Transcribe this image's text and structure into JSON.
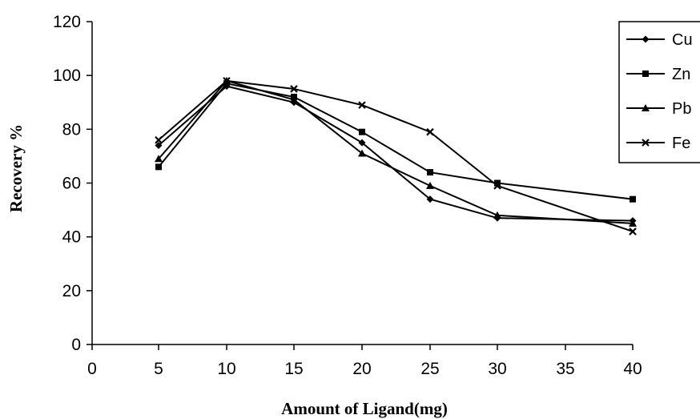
{
  "chart_data": {
    "type": "line",
    "xlabel": "Amount of Ligand(mg)",
    "ylabel": "Recovery %",
    "x_tick_labels": [
      "0",
      "5",
      "10",
      "15",
      "20",
      "25",
      "30",
      "35",
      "40"
    ],
    "y_tick_labels": [
      "0",
      "20",
      "40",
      "60",
      "80",
      "100",
      "120"
    ],
    "ylim": [
      0,
      120
    ],
    "grid": false,
    "legend_position": "right",
    "x": [
      5,
      10,
      15,
      20,
      25,
      30,
      40
    ],
    "series": [
      {
        "name": "Cu",
        "marker": "diamond",
        "values": [
          74,
          96,
          90,
          75,
          54,
          47,
          46
        ]
      },
      {
        "name": "Zn",
        "marker": "square",
        "values": [
          66,
          97,
          92,
          79,
          64,
          60,
          54
        ]
      },
      {
        "name": "Pb",
        "marker": "triangle",
        "values": [
          69,
          98,
          91,
          71,
          59,
          48,
          45
        ]
      },
      {
        "name": "Fe",
        "marker": "x",
        "values": [
          76,
          98,
          95,
          89,
          79,
          59,
          42
        ]
      }
    ],
    "colors": {
      "line": "#000000",
      "background": "#ffffff"
    }
  }
}
